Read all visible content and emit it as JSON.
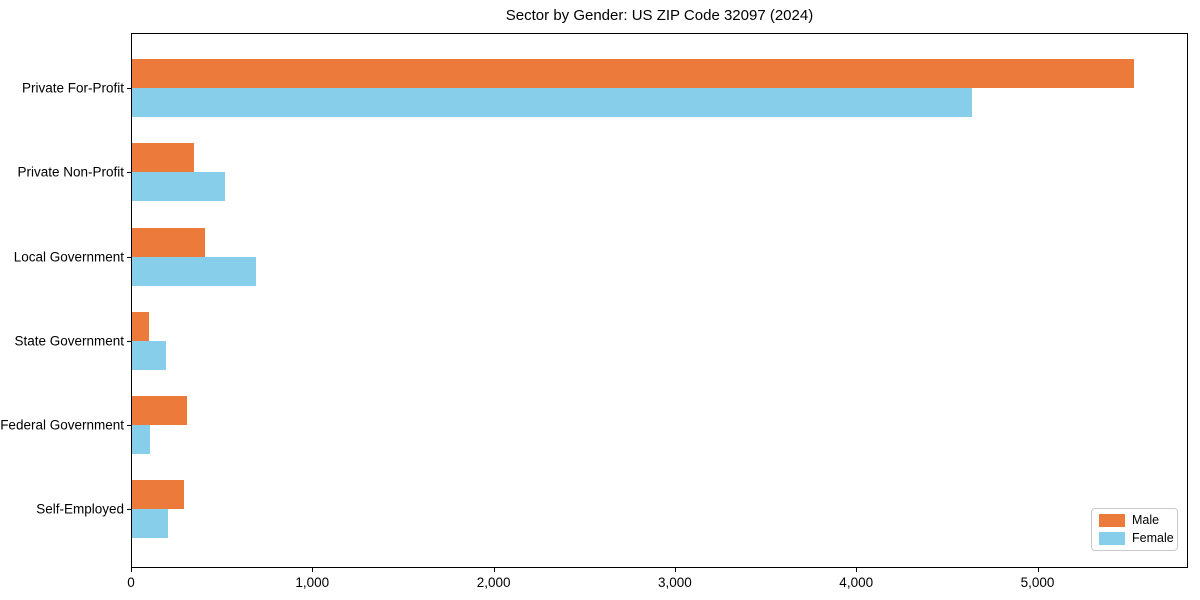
{
  "title": "Sector by Gender: US ZIP Code 32097 (2024)",
  "legend": {
    "position": "lower right",
    "items": [
      {
        "label": "Male",
        "color": "#eb7a3b"
      },
      {
        "label": "Female",
        "color": "#87ceeb"
      }
    ]
  },
  "chart_data": {
    "type": "bar",
    "orientation": "horizontal",
    "title": "Sector by Gender: US ZIP Code 32097 (2024)",
    "categories": [
      "Private For-Profit",
      "Private Non-Profit",
      "Local Government",
      "State Government",
      "Federal Government",
      "Self-Employed"
    ],
    "series": [
      {
        "name": "Male",
        "color": "#eb7a3b",
        "values": [
          5530,
          350,
          410,
          100,
          310,
          295
        ]
      },
      {
        "name": "Female",
        "color": "#87ceeb",
        "values": [
          4640,
          520,
          690,
          195,
          105,
          205
        ]
      }
    ],
    "xlabel": "",
    "ylabel": "",
    "xlim": [
      0,
      5830
    ],
    "x_ticks": [
      0,
      1000,
      2000,
      3000,
      4000,
      5000
    ],
    "x_tick_labels": [
      "0",
      "1,000",
      "2,000",
      "3,000",
      "4,000",
      "5,000"
    ],
    "grid": false,
    "legend_position": "lower right",
    "background_color": "#ffffff"
  }
}
